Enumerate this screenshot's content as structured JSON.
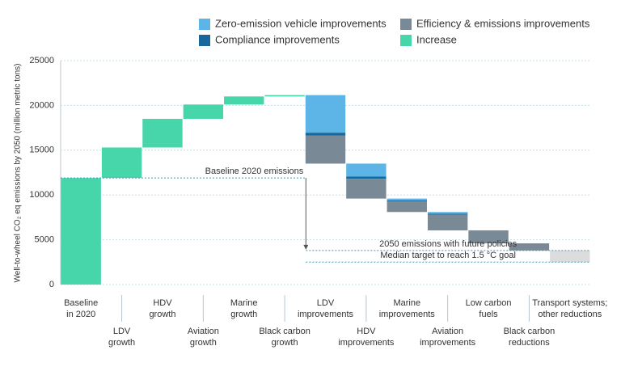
{
  "chart_data": {
    "type": "waterfall",
    "y_label": "Well-to-wheel CO₂ eq emissions by 2050 (million metric tons)",
    "categories": [
      [
        "Baseline",
        "in 2020"
      ],
      [
        "LDV",
        "growth"
      ],
      [
        "HDV",
        "growth"
      ],
      [
        "Aviation",
        "growth"
      ],
      [
        "Marine",
        "growth"
      ],
      [
        "Black carbon",
        "growth"
      ],
      [
        "LDV",
        "improvements"
      ],
      [
        "HDV",
        "improvements"
      ],
      [
        "Marine",
        "improvements"
      ],
      [
        "Aviation",
        "improvements"
      ],
      [
        "Low carbon",
        "fuels"
      ],
      [
        "Black carbon",
        "reductions"
      ],
      [
        "Transport systems;",
        "other reductions"
      ]
    ],
    "series": [
      {
        "name": "Zero-emission vehicle improvements",
        "color": "#5cb5e6",
        "values": [
          null,
          null,
          null,
          null,
          null,
          null,
          4200,
          1450,
          200,
          200,
          null,
          null,
          null
        ]
      },
      {
        "name": "Efficiency & emissions improvements",
        "color": "#7a8996",
        "values": [
          null,
          null,
          null,
          null,
          null,
          null,
          3150,
          2200,
          1200,
          1750,
          1450,
          800,
          null
        ]
      },
      {
        "name": "Compliance improvements",
        "color": "#17699b",
        "values": [
          null,
          null,
          null,
          null,
          null,
          null,
          300,
          250,
          100,
          100,
          null,
          null,
          null
        ]
      },
      {
        "name": "Increase",
        "color": "#47d6aa",
        "values": [
          11900,
          3400,
          3200,
          1600,
          900,
          150,
          null,
          null,
          null,
          null,
          null,
          null,
          null
        ]
      },
      {
        "color": "#dcdcdc",
        "values": [
          null,
          null,
          null,
          null,
          null,
          null,
          null,
          null,
          null,
          null,
          null,
          null,
          1300
        ]
      }
    ],
    "reference_lines": [
      {
        "label": "Baseline 2020 emissions",
        "value": 11900
      },
      {
        "label": "2050 emissions with future policies",
        "value": 3800
      },
      {
        "label": "Median target to reach 1.5 °C goal",
        "value": 2500
      }
    ],
    "ylim": [
      0,
      25000
    ],
    "yticks": [
      0,
      5000,
      10000,
      15000,
      20000,
      25000
    ],
    "grid": true
  }
}
